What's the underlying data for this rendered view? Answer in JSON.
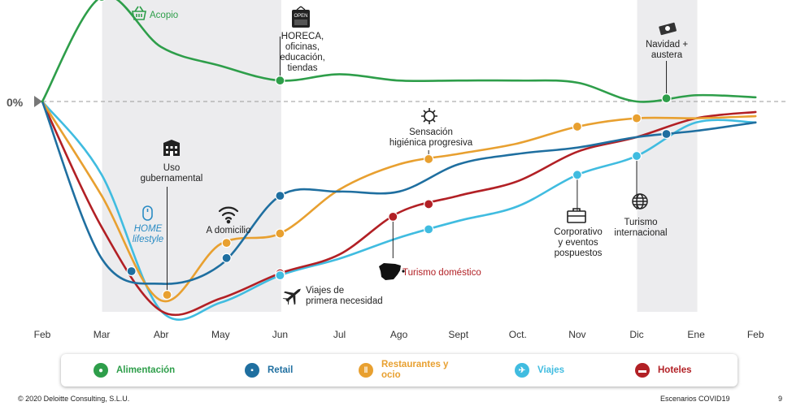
{
  "chart_data": {
    "type": "line",
    "x": [
      "Feb",
      "Mar",
      "Abr",
      "May",
      "Jun",
      "Jul",
      "Ago",
      "Sept",
      "Oct.",
      "Nov",
      "Dic",
      "Ene",
      "Feb"
    ],
    "zero_label": "0%",
    "shaded_periods": [
      [
        "Mar",
        "Jun"
      ],
      [
        "Dic",
        "Ene"
      ]
    ],
    "series": [
      {
        "name": "Alimentación",
        "color": "#2E9E4A",
        "values": [
          0,
          50,
          26,
          17,
          10,
          13,
          10,
          10,
          10,
          9,
          0,
          3,
          2
        ]
      },
      {
        "name": "Retail",
        "color": "#1F6FA0",
        "values": [
          0,
          -75,
          -87,
          -78,
          -45,
          -43,
          -43,
          -30,
          -25,
          -22,
          -17,
          -14,
          -10
        ]
      },
      {
        "name": "Restaurantes y ocio",
        "color": "#E8A030",
        "values": [
          0,
          -45,
          -95,
          -68,
          -63,
          -42,
          -30,
          -25,
          -20,
          -12,
          -8,
          -8,
          -7
        ]
      },
      {
        "name": "Viajes",
        "color": "#40BCE0",
        "values": [
          0,
          -35,
          -100,
          -96,
          -83,
          -75,
          -65,
          -57,
          -50,
          -35,
          -26,
          -10,
          -10
        ]
      },
      {
        "name": "Hoteles",
        "color": "#B22025",
        "values": [
          0,
          -60,
          -100,
          -94,
          -82,
          -73,
          -53,
          -45,
          -38,
          -24,
          -17,
          -8,
          -5
        ]
      }
    ]
  },
  "annotations": {
    "acopio": "Acopio",
    "horeca": [
      "HORECA,",
      "oficinas,",
      "educación,",
      "tiendas"
    ],
    "navidad": [
      "Navidad +",
      "austera"
    ],
    "uso": [
      "Uso",
      "gubernamental"
    ],
    "home": [
      "HOME",
      "lifestyle"
    ],
    "domicilio": "A domicilio",
    "sensacion": [
      "Sensación",
      "higiénica progresiva"
    ],
    "corporativo": [
      "Corporativo",
      "y eventos",
      "pospuestos"
    ],
    "turismo_int": [
      "Turismo",
      "internacional"
    ],
    "turismo_dom": "Turismo doméstico",
    "viajes_primera": [
      "Viajes de",
      "primera necesidad"
    ],
    "open_sign": "OPEN"
  },
  "legend": [
    {
      "label": "Alimentación",
      "color": "#2E9E4A",
      "icon": "apple-icon"
    },
    {
      "label": "Retail",
      "color": "#1F6FA0",
      "icon": "cart-icon"
    },
    {
      "label": "Restaurantes y ocio",
      "color": "#E8A030",
      "icon": "cutlery-icon"
    },
    {
      "label": "Viajes",
      "color": "#40BCE0",
      "icon": "plane-icon"
    },
    {
      "label": "Hoteles",
      "color": "#B22025",
      "icon": "bed-icon"
    }
  ],
  "footer": {
    "copyright": "© 2020 Deloitte Consulting, S.L.U.",
    "title": "Escenarios COVID19",
    "page": "9"
  }
}
